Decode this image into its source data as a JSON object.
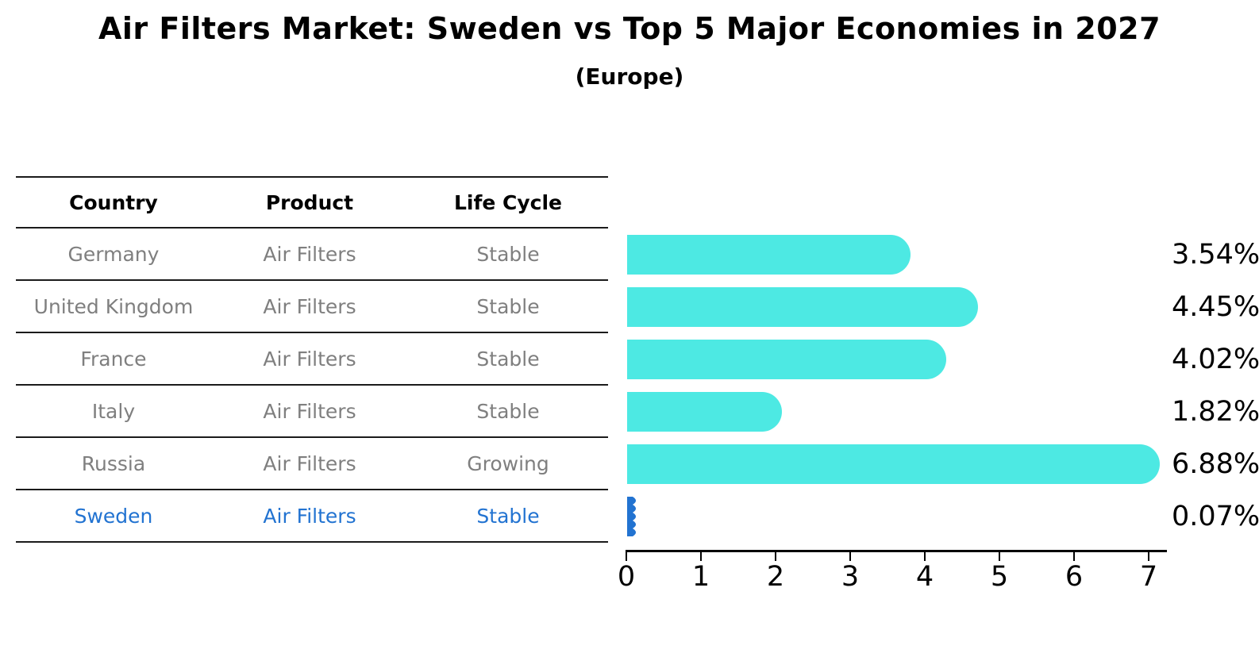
{
  "title": "Air Filters Market: Sweden vs Top 5 Major Economies in 2027",
  "subtitle": "(Europe)",
  "table": {
    "headers": [
      "Country",
      "Product",
      "Life Cycle"
    ],
    "rows": [
      {
        "country": "Germany",
        "product": "Air Filters",
        "life_cycle": "Stable",
        "highlight": false
      },
      {
        "country": "United Kingdom",
        "product": "Air Filters",
        "life_cycle": "Stable",
        "highlight": false
      },
      {
        "country": "France",
        "product": "Air Filters",
        "life_cycle": "Stable",
        "highlight": false
      },
      {
        "country": "Italy",
        "product": "Air Filters",
        "life_cycle": "Stable",
        "highlight": false
      },
      {
        "country": "Russia",
        "product": "Air Filters",
        "life_cycle": "Growing",
        "highlight": false
      },
      {
        "country": "Sweden",
        "product": "Air Filters",
        "life_cycle": "Stable",
        "highlight": true
      }
    ]
  },
  "chart_data": {
    "type": "bar",
    "orientation": "horizontal",
    "title": "Air Filters Market: Sweden vs Top 5 Major Economies in 2027",
    "subtitle": "(Europe)",
    "categories": [
      "Germany",
      "United Kingdom",
      "France",
      "Italy",
      "Russia",
      "Sweden"
    ],
    "values": [
      3.54,
      4.45,
      4.02,
      1.82,
      6.88,
      0.07
    ],
    "labels": [
      "3.54%",
      "4.45%",
      "4.02%",
      "1.82%",
      "6.88%",
      "0.07%"
    ],
    "xlabel": "",
    "ylabel": "",
    "xlim": [
      0,
      7
    ],
    "x_ticks": [
      0,
      1,
      2,
      3,
      4,
      5,
      6,
      7
    ],
    "grid": false,
    "legend": false,
    "bar_color": "#4DE9E3",
    "highlight_color": "#2273D1",
    "highlight_index": 5
  },
  "colors": {
    "background": "#FFFFFF",
    "table_text": "#7F7F7F",
    "table_rule": "#1B1B1B",
    "axis": "#000000",
    "highlight_text": "#2273D1"
  }
}
